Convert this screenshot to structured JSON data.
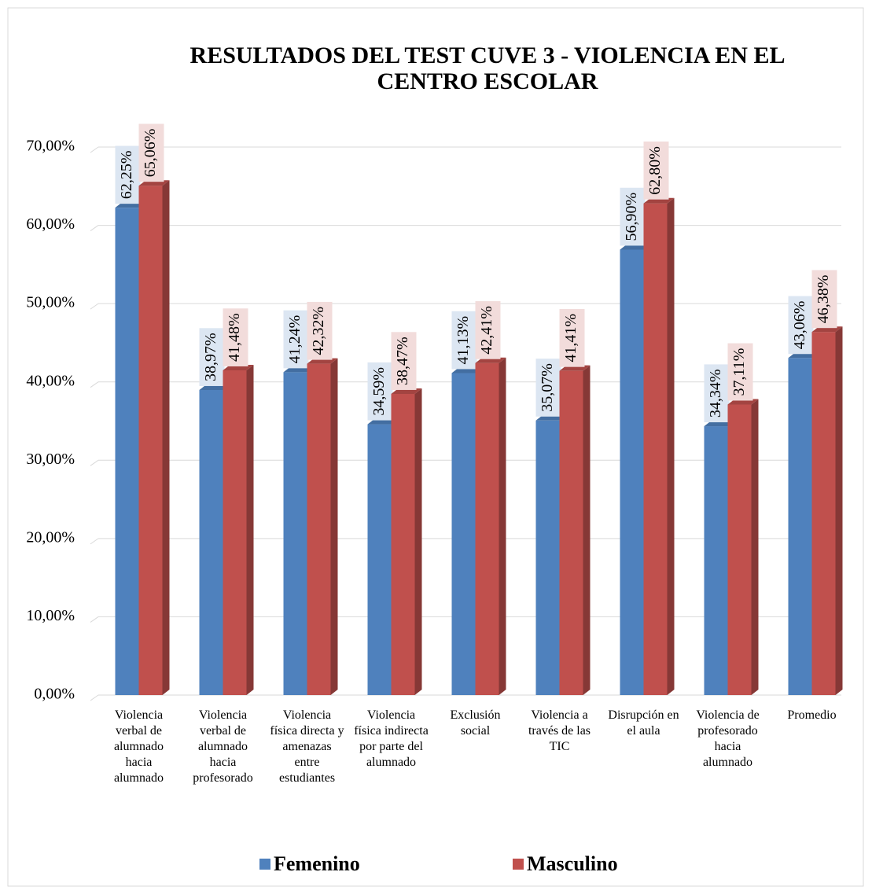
{
  "chart_data": {
    "type": "bar",
    "title": "RESULTADOS DEL TEST CUVE 3 - VIOLENCIA EN EL CENTRO ESCOLAR",
    "categories": [
      "Violencia verbal de alumnado hacia alumnado",
      "Violencia verbal de alumnado hacia profesorado",
      "Violencia física directa y amenazas entre estudiantes",
      "Violencia física indirecta por parte del alumnado",
      "Exclusión social",
      "Violencia a través de las TIC",
      "Disrupción en el aula",
      "Violencia de profesorado hacia alumnado",
      "Promedio"
    ],
    "series": [
      {
        "name": "Femenino",
        "color": "#4f81bd",
        "label_bg": "#dce6f2",
        "values": [
          62.25,
          38.97,
          41.24,
          34.59,
          41.13,
          35.07,
          56.9,
          34.34,
          43.06
        ],
        "value_labels": [
          "62,25%",
          "38,97%",
          "41,24%",
          "34,59%",
          "41,13%",
          "35,07%",
          "56,90%",
          "34,34%",
          "43,06%"
        ]
      },
      {
        "name": "Masculino",
        "color": "#c0504d",
        "label_bg": "#f2dcdb",
        "values": [
          65.06,
          41.48,
          42.32,
          38.47,
          42.41,
          41.41,
          62.8,
          37.11,
          46.38
        ],
        "value_labels": [
          "65,06%",
          "41,48%",
          "42,32%",
          "38,47%",
          "42,41%",
          "41,41%",
          "62,80%",
          "37,11%",
          "46,38%"
        ]
      }
    ],
    "ylim": [
      0,
      70
    ],
    "yticks": [
      {
        "value": 0,
        "label": "0,00%"
      },
      {
        "value": 10,
        "label": "10,00%"
      },
      {
        "value": 20,
        "label": "20,00%"
      },
      {
        "value": 30,
        "label": "30,00%"
      },
      {
        "value": 40,
        "label": "40,00%"
      },
      {
        "value": 50,
        "label": "50,00%"
      },
      {
        "value": 60,
        "label": "60,00%"
      },
      {
        "value": 70,
        "label": "70,00%"
      }
    ],
    "grid": true,
    "legend": "bottom"
  }
}
